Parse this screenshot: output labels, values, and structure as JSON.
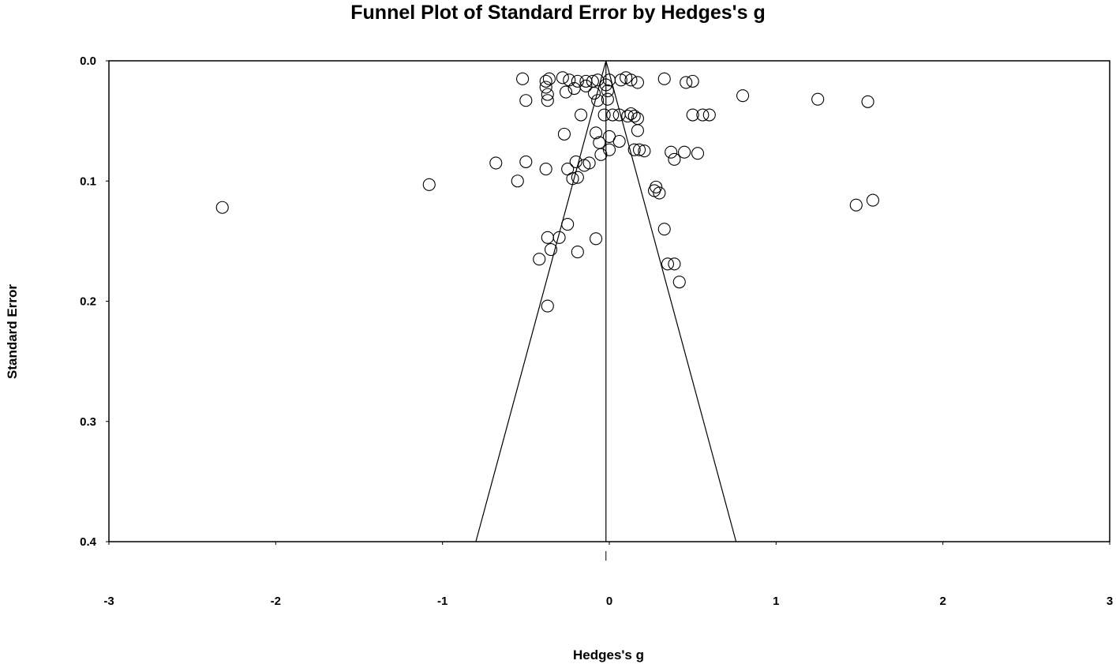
{
  "chart_data": {
    "type": "scatter",
    "title": "Funnel Plot of Standard Error by Hedges's g",
    "xlabel": "Hedges's g",
    "ylabel": "Standard Error",
    "xlim": [
      -3,
      3
    ],
    "ylim": [
      0.4,
      0.0
    ],
    "y_axis_inverted": true,
    "x_ticks": [
      "-3",
      "-2",
      "-1",
      "0",
      "1",
      "2",
      "3"
    ],
    "y_ticks": [
      "0.0",
      "0.1",
      "0.2",
      "0.3",
      "0.4"
    ],
    "grid": false,
    "pooled_effect": -0.02,
    "funnel_limits_at_se_0_4": [
      -0.8,
      0.76
    ],
    "marker": "open-circle",
    "points": [
      {
        "x": -2.32,
        "y": 0.122
      },
      {
        "x": -1.08,
        "y": 0.103
      },
      {
        "x": -0.68,
        "y": 0.085
      },
      {
        "x": -0.55,
        "y": 0.1
      },
      {
        "x": -0.5,
        "y": 0.084
      },
      {
        "x": -0.38,
        "y": 0.09
      },
      {
        "x": -0.52,
        "y": 0.015
      },
      {
        "x": -0.5,
        "y": 0.033
      },
      {
        "x": -0.38,
        "y": 0.017
      },
      {
        "x": -0.36,
        "y": 0.015
      },
      {
        "x": -0.38,
        "y": 0.022
      },
      {
        "x": -0.37,
        "y": 0.028
      },
      {
        "x": -0.37,
        "y": 0.033
      },
      {
        "x": -0.28,
        "y": 0.014
      },
      {
        "x": -0.24,
        "y": 0.016
      },
      {
        "x": -0.19,
        "y": 0.017
      },
      {
        "x": -0.14,
        "y": 0.017
      },
      {
        "x": -0.1,
        "y": 0.017
      },
      {
        "x": -0.07,
        "y": 0.016
      },
      {
        "x": -0.21,
        "y": 0.023
      },
      {
        "x": -0.26,
        "y": 0.026
      },
      {
        "x": -0.14,
        "y": 0.021
      },
      {
        "x": -0.09,
        "y": 0.027
      },
      {
        "x": -0.07,
        "y": 0.033
      },
      {
        "x": 0.0,
        "y": 0.016
      },
      {
        "x": -0.02,
        "y": 0.02
      },
      {
        "x": 0.07,
        "y": 0.016
      },
      {
        "x": 0.1,
        "y": 0.014
      },
      {
        "x": 0.13,
        "y": 0.016
      },
      {
        "x": 0.17,
        "y": 0.018
      },
      {
        "x": 0.33,
        "y": 0.015
      },
      {
        "x": 0.46,
        "y": 0.018
      },
      {
        "x": 0.5,
        "y": 0.017
      },
      {
        "x": -0.01,
        "y": 0.025
      },
      {
        "x": -0.01,
        "y": 0.032
      },
      {
        "x": 0.8,
        "y": 0.029
      },
      {
        "x": 1.25,
        "y": 0.032
      },
      {
        "x": 1.55,
        "y": 0.034
      },
      {
        "x": -0.17,
        "y": 0.045
      },
      {
        "x": -0.03,
        "y": 0.045
      },
      {
        "x": 0.02,
        "y": 0.045
      },
      {
        "x": 0.06,
        "y": 0.045
      },
      {
        "x": 0.11,
        "y": 0.046
      },
      {
        "x": 0.13,
        "y": 0.044
      },
      {
        "x": 0.15,
        "y": 0.046
      },
      {
        "x": 0.17,
        "y": 0.048
      },
      {
        "x": 0.5,
        "y": 0.045
      },
      {
        "x": 0.56,
        "y": 0.045
      },
      {
        "x": 0.6,
        "y": 0.045
      },
      {
        "x": -0.27,
        "y": 0.061
      },
      {
        "x": -0.08,
        "y": 0.06
      },
      {
        "x": -0.06,
        "y": 0.068
      },
      {
        "x": 0.0,
        "y": 0.063
      },
      {
        "x": 0.06,
        "y": 0.067
      },
      {
        "x": 0.17,
        "y": 0.058
      },
      {
        "x": -0.05,
        "y": 0.078
      },
      {
        "x": 0.0,
        "y": 0.074
      },
      {
        "x": 0.15,
        "y": 0.074
      },
      {
        "x": 0.18,
        "y": 0.074
      },
      {
        "x": 0.21,
        "y": 0.075
      },
      {
        "x": 0.37,
        "y": 0.076
      },
      {
        "x": 0.45,
        "y": 0.076
      },
      {
        "x": 0.53,
        "y": 0.077
      },
      {
        "x": 0.39,
        "y": 0.082
      },
      {
        "x": -0.2,
        "y": 0.084
      },
      {
        "x": -0.15,
        "y": 0.087
      },
      {
        "x": -0.12,
        "y": 0.085
      },
      {
        "x": -0.25,
        "y": 0.09
      },
      {
        "x": -0.22,
        "y": 0.098
      },
      {
        "x": -0.19,
        "y": 0.097
      },
      {
        "x": 0.28,
        "y": 0.105
      },
      {
        "x": 0.27,
        "y": 0.108
      },
      {
        "x": 0.3,
        "y": 0.11
      },
      {
        "x": 1.48,
        "y": 0.12
      },
      {
        "x": 1.58,
        "y": 0.116
      },
      {
        "x": -0.25,
        "y": 0.136
      },
      {
        "x": 0.33,
        "y": 0.14
      },
      {
        "x": -0.37,
        "y": 0.147
      },
      {
        "x": -0.3,
        "y": 0.147
      },
      {
        "x": -0.08,
        "y": 0.148
      },
      {
        "x": -0.35,
        "y": 0.157
      },
      {
        "x": -0.19,
        "y": 0.159
      },
      {
        "x": -0.42,
        "y": 0.165
      },
      {
        "x": 0.35,
        "y": 0.169
      },
      {
        "x": 0.39,
        "y": 0.169
      },
      {
        "x": 0.42,
        "y": 0.184
      },
      {
        "x": -0.37,
        "y": 0.204
      }
    ]
  }
}
